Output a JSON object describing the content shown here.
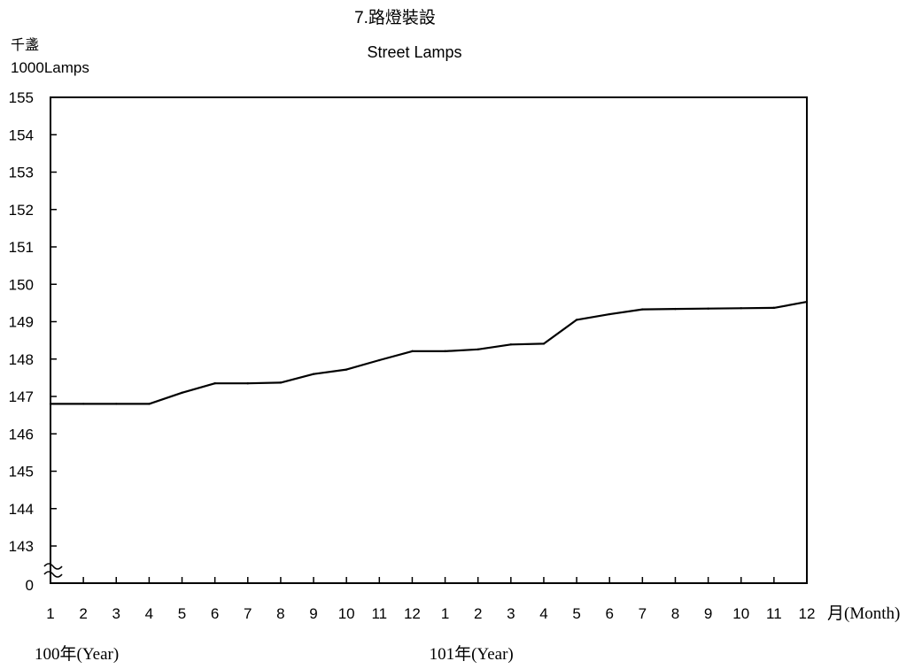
{
  "chart_data": {
    "type": "line",
    "title": "7.路燈裝設",
    "subtitle": "Street Lamps",
    "y_unit_zh": "千盞",
    "y_unit_en": "1000Lamps",
    "xlabel": "月(Month)",
    "y_break_label": "0",
    "ylim": [
      143,
      155
    ],
    "y_ticks": [
      "143",
      "144",
      "145",
      "146",
      "147",
      "148",
      "149",
      "150",
      "151",
      "152",
      "153",
      "154",
      "155"
    ],
    "categories": [
      "1",
      "2",
      "3",
      "4",
      "5",
      "6",
      "7",
      "8",
      "9",
      "10",
      "11",
      "12",
      "1",
      "2",
      "3",
      "4",
      "5",
      "6",
      "7",
      "8",
      "9",
      "10",
      "11",
      "12"
    ],
    "year_labels": [
      {
        "text": "100年(Year)",
        "month_index": 0
      },
      {
        "text": "101年(Year)",
        "month_index": 12
      }
    ],
    "series": [
      {
        "values": [
          146.8,
          146.8,
          146.8,
          146.8,
          147.1,
          147.35,
          147.35,
          147.37,
          147.6,
          147.72,
          147.97,
          148.21,
          148.21,
          148.26,
          148.39,
          148.41,
          149.05,
          149.2,
          149.33,
          149.34,
          149.35,
          149.36,
          149.37,
          149.53
        ]
      }
    ],
    "colors": {
      "line": "#000000",
      "axis": "#000000"
    },
    "grid": false
  }
}
